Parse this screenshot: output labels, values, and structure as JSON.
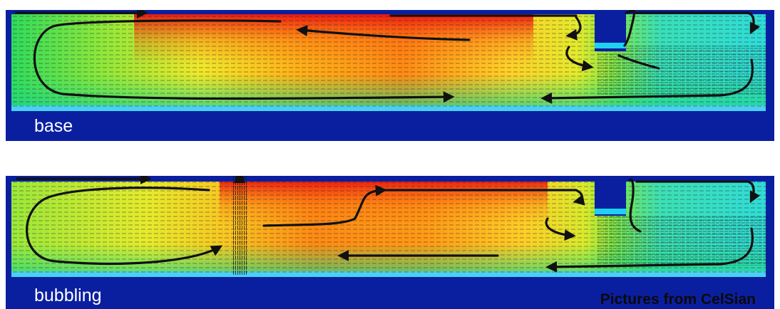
{
  "panels": [
    {
      "id": "base",
      "label": "base"
    },
    {
      "id": "bubbling",
      "label": "bubbling"
    }
  ],
  "credit": "Pictures from CelSian",
  "colors": {
    "background": "#0a1fa0",
    "cold": "#1fd9e6",
    "cool": "#27e08a",
    "warm": "#f0f02a",
    "hot": "#ff7a10",
    "hottest": "#e01010",
    "arrows": "#111111"
  },
  "icons": [
    "flow-arrow-icon",
    "bubble-plume-icon",
    "throat-wall-icon"
  ]
}
